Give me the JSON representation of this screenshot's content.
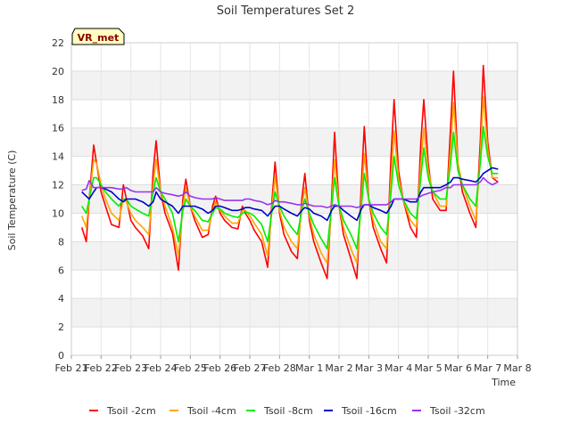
{
  "chart_data": {
    "type": "line",
    "title": "Soil Temperatures Set 2",
    "xlabel": "Time",
    "ylabel": "Soil Temperature (C)",
    "badge": "VR_met",
    "ylim": [
      0,
      22
    ],
    "yticks": [
      0,
      2,
      4,
      6,
      8,
      10,
      12,
      14,
      16,
      18,
      20,
      22
    ],
    "xlim": [
      0,
      15
    ],
    "xticks": [
      {
        "value": 0,
        "label": "Feb 21"
      },
      {
        "value": 1,
        "label": "Feb 22"
      },
      {
        "value": 2,
        "label": "Feb 23"
      },
      {
        "value": 3,
        "label": "Feb 24"
      },
      {
        "value": 4,
        "label": "Feb 25"
      },
      {
        "value": 5,
        "label": "Feb 26"
      },
      {
        "value": 6,
        "label": "Feb 27"
      },
      {
        "value": 7,
        "label": "Feb 28"
      },
      {
        "value": 8,
        "label": "Mar 1"
      },
      {
        "value": 9,
        "label": "Mar 2"
      },
      {
        "value": 10,
        "label": "Mar 3"
      },
      {
        "value": 11,
        "label": "Mar 4"
      },
      {
        "value": 12,
        "label": "Mar 5"
      },
      {
        "value": 13,
        "label": "Mar 6"
      },
      {
        "value": 14,
        "label": "Mar 7"
      },
      {
        "value": 15,
        "label": "Mar 8"
      }
    ],
    "grid": true,
    "legend_position": "bottom",
    "series": [
      {
        "name": "Tsoil -2cm",
        "color": "#ff0000",
        "x": [
          0.35,
          0.5,
          0.6,
          0.75,
          0.85,
          1.0,
          1.15,
          1.35,
          1.6,
          1.75,
          1.85,
          2.0,
          2.15,
          2.4,
          2.6,
          2.75,
          2.85,
          3.0,
          3.15,
          3.4,
          3.6,
          3.75,
          3.85,
          4.0,
          4.15,
          4.4,
          4.6,
          4.75,
          4.85,
          5.0,
          5.15,
          5.4,
          5.6,
          5.75,
          5.85,
          6.0,
          6.15,
          6.4,
          6.6,
          6.75,
          6.85,
          7.0,
          7.15,
          7.4,
          7.6,
          7.75,
          7.85,
          8.0,
          8.15,
          8.4,
          8.6,
          8.75,
          8.85,
          9.0,
          9.15,
          9.4,
          9.6,
          9.75,
          9.85,
          10.0,
          10.15,
          10.4,
          10.6,
          10.75,
          10.85,
          11.0,
          11.15,
          11.4,
          11.6,
          11.75,
          11.85,
          12.0,
          12.15,
          12.4,
          12.6,
          12.75,
          12.85,
          13.0,
          13.15,
          13.4,
          13.6,
          13.75,
          13.85,
          14.0,
          14.15,
          14.35
        ],
        "y": [
          9.0,
          8.0,
          11.0,
          14.8,
          13.5,
          11.5,
          10.5,
          9.2,
          9.0,
          12.0,
          11.0,
          9.5,
          9.0,
          8.4,
          7.5,
          13.0,
          15.1,
          11.5,
          10.0,
          8.6,
          6.0,
          11.0,
          12.4,
          10.5,
          9.5,
          8.3,
          8.5,
          10.5,
          11.2,
          10.0,
          9.5,
          9.0,
          8.9,
          10.5,
          10.0,
          9.5,
          8.8,
          8.0,
          6.2,
          11.0,
          13.6,
          10.0,
          8.5,
          7.3,
          6.8,
          11.0,
          12.8,
          9.5,
          8.0,
          6.5,
          5.4,
          11.0,
          15.7,
          10.5,
          8.5,
          6.8,
          5.4,
          12.0,
          16.1,
          11.0,
          9.0,
          7.5,
          6.5,
          14.0,
          18.0,
          13.0,
          11.0,
          9.0,
          8.3,
          15.0,
          18.0,
          13.5,
          11.0,
          10.2,
          10.2,
          16.0,
          20.0,
          13.5,
          11.5,
          10.0,
          9.0,
          15.0,
          20.4,
          15.0,
          12.5,
          12.2
        ]
      },
      {
        "name": "Tsoil -4cm",
        "color": "#ffa500",
        "x": [
          0.35,
          0.5,
          0.6,
          0.75,
          0.85,
          1.0,
          1.15,
          1.35,
          1.6,
          1.75,
          1.85,
          2.0,
          2.15,
          2.4,
          2.6,
          2.75,
          2.85,
          3.0,
          3.15,
          3.4,
          3.6,
          3.75,
          3.85,
          4.0,
          4.15,
          4.4,
          4.6,
          4.75,
          4.85,
          5.0,
          5.15,
          5.4,
          5.6,
          5.75,
          5.85,
          6.0,
          6.15,
          6.4,
          6.6,
          6.75,
          6.85,
          7.0,
          7.15,
          7.4,
          7.6,
          7.75,
          7.85,
          8.0,
          8.15,
          8.4,
          8.6,
          8.75,
          8.85,
          9.0,
          9.15,
          9.4,
          9.6,
          9.75,
          9.85,
          10.0,
          10.15,
          10.4,
          10.6,
          10.75,
          10.85,
          11.0,
          11.15,
          11.4,
          11.6,
          11.75,
          11.85,
          12.0,
          12.15,
          12.4,
          12.6,
          12.75,
          12.85,
          13.0,
          13.15,
          13.4,
          13.6,
          13.75,
          13.85,
          14.0,
          14.15,
          14.35
        ],
        "y": [
          9.8,
          9.0,
          11.0,
          13.8,
          13.5,
          12.0,
          11.0,
          10.0,
          9.5,
          11.0,
          10.8,
          10.0,
          9.5,
          9.0,
          8.5,
          12.0,
          13.8,
          11.5,
          10.5,
          9.0,
          7.0,
          10.5,
          11.8,
          10.5,
          9.8,
          8.8,
          8.8,
          10.2,
          10.8,
          10.2,
          9.8,
          9.3,
          9.3,
          10.2,
          10.2,
          9.8,
          9.3,
          8.5,
          7.0,
          10.5,
          12.6,
          10.2,
          9.0,
          8.0,
          7.5,
          10.5,
          11.8,
          9.8,
          8.5,
          7.2,
          6.5,
          10.5,
          13.8,
          10.5,
          9.0,
          7.5,
          6.5,
          11.0,
          14.2,
          11.0,
          9.5,
          8.0,
          7.5,
          12.5,
          15.8,
          12.5,
          11.0,
          9.5,
          9.0,
          13.5,
          16.0,
          13.0,
          11.5,
          10.5,
          10.5,
          14.5,
          17.8,
          13.5,
          12.0,
          10.5,
          9.5,
          14.0,
          18.2,
          14.5,
          12.5,
          12.5
        ]
      },
      {
        "name": "Tsoil -8cm",
        "color": "#00ee00",
        "x": [
          0.35,
          0.5,
          0.6,
          0.75,
          0.85,
          1.0,
          1.15,
          1.35,
          1.6,
          1.75,
          1.85,
          2.0,
          2.15,
          2.4,
          2.6,
          2.75,
          2.85,
          3.0,
          3.15,
          3.4,
          3.6,
          3.75,
          3.85,
          4.0,
          4.15,
          4.4,
          4.6,
          4.75,
          4.85,
          5.0,
          5.15,
          5.4,
          5.6,
          5.75,
          5.85,
          6.0,
          6.15,
          6.4,
          6.6,
          6.75,
          6.85,
          7.0,
          7.15,
          7.4,
          7.6,
          7.75,
          7.85,
          8.0,
          8.15,
          8.4,
          8.6,
          8.75,
          8.85,
          9.0,
          9.15,
          9.4,
          9.6,
          9.75,
          9.85,
          10.0,
          10.15,
          10.4,
          10.6,
          10.75,
          10.85,
          11.0,
          11.15,
          11.4,
          11.6,
          11.75,
          11.85,
          12.0,
          12.15,
          12.4,
          12.6,
          12.75,
          12.85,
          13.0,
          13.15,
          13.4,
          13.6,
          13.75,
          13.85,
          14.0,
          14.15,
          14.35
        ],
        "y": [
          10.5,
          10.0,
          11.0,
          12.5,
          12.5,
          12.0,
          11.5,
          11.0,
          10.5,
          11.0,
          11.0,
          10.5,
          10.3,
          10.0,
          9.8,
          11.5,
          12.5,
          11.5,
          11.0,
          10.0,
          8.0,
          10.2,
          11.0,
          10.5,
          10.2,
          9.5,
          9.4,
          10.0,
          10.4,
          10.3,
          10.0,
          9.8,
          9.7,
          10.0,
          10.1,
          10.0,
          9.8,
          9.2,
          8.0,
          10.2,
          11.5,
          10.5,
          9.8,
          9.0,
          8.5,
          10.2,
          11.0,
          10.0,
          9.2,
          8.2,
          7.5,
          10.5,
          12.5,
          10.5,
          9.5,
          8.5,
          7.5,
          10.5,
          12.8,
          11.0,
          10.0,
          9.0,
          8.5,
          11.5,
          14.0,
          12.0,
          11.0,
          10.0,
          9.6,
          12.5,
          14.6,
          12.5,
          11.5,
          11.0,
          11.0,
          13.5,
          15.7,
          13.0,
          12.0,
          11.0,
          10.5,
          13.5,
          16.1,
          14.0,
          12.8,
          12.8
        ]
      },
      {
        "name": "Tsoil -16cm",
        "color": "#0000cc",
        "x": [
          0.35,
          0.5,
          0.6,
          0.75,
          0.85,
          1.0,
          1.15,
          1.35,
          1.6,
          1.75,
          1.85,
          2.0,
          2.15,
          2.4,
          2.6,
          2.75,
          2.85,
          3.0,
          3.15,
          3.4,
          3.6,
          3.75,
          3.85,
          4.0,
          4.15,
          4.4,
          4.6,
          4.75,
          4.85,
          5.0,
          5.15,
          5.4,
          5.6,
          5.75,
          5.85,
          6.0,
          6.15,
          6.4,
          6.6,
          6.75,
          6.85,
          7.0,
          7.15,
          7.4,
          7.6,
          7.75,
          7.85,
          8.0,
          8.15,
          8.4,
          8.6,
          8.75,
          8.85,
          9.0,
          9.15,
          9.4,
          9.6,
          9.75,
          9.85,
          10.0,
          10.15,
          10.4,
          10.6,
          10.75,
          10.85,
          11.0,
          11.15,
          11.4,
          11.6,
          11.75,
          11.85,
          12.0,
          12.15,
          12.4,
          12.6,
          12.75,
          12.85,
          13.0,
          13.15,
          13.4,
          13.6,
          13.75,
          13.85,
          14.0,
          14.15,
          14.35
        ],
        "y": [
          11.5,
          11.2,
          11.0,
          11.5,
          11.8,
          11.8,
          11.7,
          11.5,
          11.0,
          10.8,
          11.0,
          11.0,
          11.0,
          10.8,
          10.5,
          10.8,
          11.5,
          11.0,
          10.8,
          10.5,
          10.0,
          10.5,
          10.5,
          10.5,
          10.5,
          10.3,
          10.0,
          10.2,
          10.5,
          10.5,
          10.4,
          10.2,
          10.2,
          10.3,
          10.4,
          10.4,
          10.3,
          10.2,
          9.8,
          10.2,
          10.5,
          10.5,
          10.3,
          10.0,
          9.8,
          10.2,
          10.4,
          10.3,
          10.0,
          9.8,
          9.5,
          10.2,
          10.5,
          10.5,
          10.2,
          9.8,
          9.5,
          10.3,
          10.6,
          10.6,
          10.4,
          10.2,
          10.0,
          10.5,
          11.0,
          11.0,
          11.0,
          10.8,
          10.8,
          11.5,
          11.8,
          11.8,
          11.8,
          11.8,
          12.0,
          12.2,
          12.5,
          12.5,
          12.4,
          12.3,
          12.2,
          12.5,
          12.8,
          13.0,
          13.2,
          13.1
        ]
      },
      {
        "name": "Tsoil -32cm",
        "color": "#9933ee",
        "x": [
          0.35,
          0.5,
          0.6,
          0.75,
          0.85,
          1.0,
          1.15,
          1.35,
          1.6,
          1.75,
          1.85,
          2.0,
          2.15,
          2.4,
          2.6,
          2.75,
          2.85,
          3.0,
          3.15,
          3.4,
          3.6,
          3.75,
          3.85,
          4.0,
          4.15,
          4.4,
          4.6,
          4.75,
          4.85,
          5.0,
          5.15,
          5.4,
          5.6,
          5.75,
          5.85,
          6.0,
          6.15,
          6.4,
          6.6,
          6.75,
          6.85,
          7.0,
          7.15,
          7.4,
          7.6,
          7.75,
          7.85,
          8.0,
          8.15,
          8.4,
          8.6,
          8.75,
          8.85,
          9.0,
          9.15,
          9.4,
          9.6,
          9.75,
          9.85,
          10.0,
          10.15,
          10.4,
          10.6,
          10.75,
          10.85,
          11.0,
          11.15,
          11.4,
          11.6,
          11.75,
          11.85,
          12.0,
          12.15,
          12.4,
          12.6,
          12.75,
          12.85,
          13.0,
          13.15,
          13.4,
          13.6,
          13.75,
          13.85,
          14.0,
          14.15,
          14.35
        ],
        "y": [
          11.6,
          11.7,
          12.3,
          11.8,
          11.8,
          11.8,
          11.8,
          11.8,
          11.7,
          11.7,
          11.8,
          11.6,
          11.5,
          11.5,
          11.5,
          11.5,
          11.8,
          11.5,
          11.4,
          11.3,
          11.2,
          11.3,
          11.5,
          11.2,
          11.1,
          11.0,
          11.0,
          11.0,
          11.1,
          11.0,
          10.9,
          10.9,
          10.9,
          10.9,
          11.0,
          11.0,
          10.9,
          10.8,
          10.6,
          10.7,
          10.9,
          10.8,
          10.8,
          10.7,
          10.6,
          10.6,
          10.7,
          10.6,
          10.5,
          10.5,
          10.4,
          10.5,
          10.6,
          10.5,
          10.5,
          10.5,
          10.4,
          10.5,
          10.6,
          10.6,
          10.6,
          10.6,
          10.6,
          10.8,
          11.0,
          11.0,
          11.0,
          11.0,
          11.0,
          11.2,
          11.3,
          11.4,
          11.5,
          11.6,
          11.8,
          11.8,
          12.0,
          12.0,
          12.0,
          12.0,
          12.0,
          12.2,
          12.5,
          12.2,
          12.0,
          12.2
        ]
      }
    ]
  }
}
